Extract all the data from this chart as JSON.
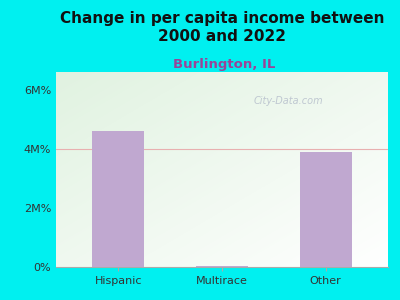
{
  "title": "Change in per capita income between\n2000 and 2022",
  "subtitle": "Burlington, IL",
  "categories": [
    "Hispanic",
    "Multirace",
    "Other"
  ],
  "values": [
    4600000,
    30000,
    3900000
  ],
  "bar_color": "#c0a8d0",
  "background_color": "#00f0f0",
  "title_fontsize": 11,
  "subtitle_fontsize": 9.5,
  "subtitle_color": "#994499",
  "title_color": "#111111",
  "tick_label_color": "#333333",
  "yticks": [
    0,
    2000000,
    4000000,
    6000000
  ],
  "ytick_labels": [
    "0%",
    "2M%",
    "4M%",
    "6M%"
  ],
  "ylim": [
    0,
    6600000
  ],
  "grid_color": "#e8b0b0",
  "watermark": "City-Data.com"
}
